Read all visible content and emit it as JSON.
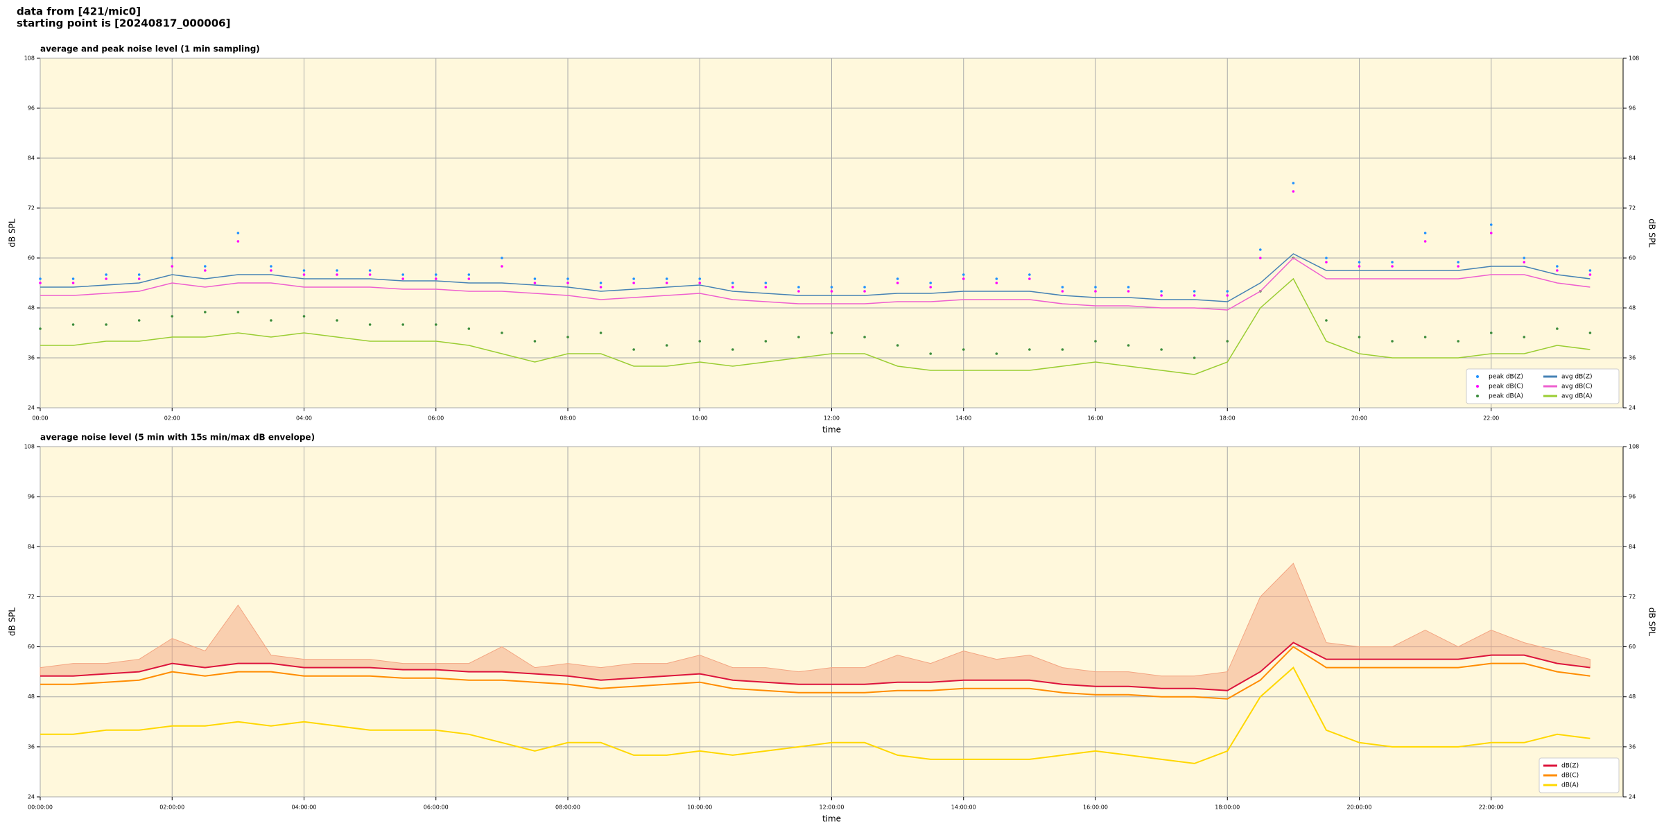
{
  "header": {
    "line1": "data from [421/mic0]",
    "line2": "starting point is [20240817_000006]"
  },
  "chart_data": [
    {
      "type": "line",
      "title": "average and peak noise level (1 min sampling)",
      "x_label": "time",
      "y_label": "dB SPL",
      "grid": true,
      "legend": "lower right",
      "legend_columns": 2,
      "x": [
        0,
        30,
        60,
        90,
        120,
        150,
        180,
        210,
        240,
        270,
        300,
        330,
        360,
        390,
        420,
        450,
        480,
        510,
        540,
        570,
        600,
        630,
        660,
        690,
        720,
        750,
        780,
        810,
        840,
        870,
        900,
        930,
        960,
        990,
        1020,
        1050,
        1080,
        1110,
        1140,
        1170,
        1200,
        1230,
        1260,
        1290,
        1320,
        1350,
        1380,
        1410
      ],
      "xlim": [
        0,
        1440
      ],
      "xticks": [
        {
          "value": 0,
          "label": "00:00"
        },
        {
          "value": 120,
          "label": "02:00"
        },
        {
          "value": 240,
          "label": "04:00"
        },
        {
          "value": 360,
          "label": "06:00"
        },
        {
          "value": 480,
          "label": "08:00"
        },
        {
          "value": 600,
          "label": "10:00"
        },
        {
          "value": 720,
          "label": "12:00"
        },
        {
          "value": 840,
          "label": "14:00"
        },
        {
          "value": 960,
          "label": "16:00"
        },
        {
          "value": 1080,
          "label": "18:00"
        },
        {
          "value": 1200,
          "label": "20:00"
        },
        {
          "value": 1320,
          "label": "22:00"
        }
      ],
      "ylim": [
        24,
        108
      ],
      "yticks": [
        24,
        36,
        48,
        60,
        72,
        84,
        96,
        108
      ],
      "series": [
        {
          "name": "peak dB(Z)",
          "kind": "scatter",
          "color": "#1e90ff",
          "values": [
            55,
            55,
            56,
            56,
            60,
            58,
            66,
            58,
            57,
            57,
            57,
            56,
            56,
            56,
            60,
            55,
            55,
            54,
            55,
            55,
            55,
            54,
            54,
            53,
            53,
            53,
            55,
            54,
            56,
            55,
            56,
            53,
            53,
            53,
            52,
            52,
            52,
            62,
            78,
            60,
            59,
            59,
            66,
            59,
            68,
            60,
            58,
            57
          ]
        },
        {
          "name": "peak dB(C)",
          "kind": "scatter",
          "color": "#ff00ff",
          "values": [
            54,
            54,
            55,
            55,
            58,
            57,
            64,
            57,
            56,
            56,
            56,
            55,
            55,
            55,
            58,
            54,
            54,
            53,
            54,
            54,
            54,
            53,
            53,
            52,
            52,
            52,
            54,
            53,
            55,
            54,
            55,
            52,
            52,
            52,
            51,
            51,
            51,
            60,
            76,
            59,
            58,
            58,
            64,
            58,
            66,
            59,
            57,
            56
          ]
        },
        {
          "name": "peak dB(A)",
          "kind": "scatter",
          "color": "#3c8c3c",
          "values": [
            43,
            44,
            44,
            45,
            46,
            47,
            47,
            45,
            46,
            45,
            44,
            44,
            44,
            43,
            42,
            40,
            41,
            42,
            38,
            39,
            40,
            38,
            40,
            41,
            42,
            41,
            39,
            37,
            38,
            37,
            38,
            38,
            40,
            39,
            38,
            36,
            40,
            52,
            60,
            45,
            41,
            40,
            41,
            40,
            42,
            41,
            43,
            42
          ]
        },
        {
          "name": "avg dB(Z)",
          "kind": "line",
          "color": "#4682b4",
          "values": [
            53,
            53,
            53.5,
            54,
            56,
            55,
            56,
            56,
            55,
            55,
            55,
            54.5,
            54.5,
            54,
            54,
            53.5,
            53,
            52,
            52.5,
            53,
            53.5,
            52,
            51.5,
            51,
            51,
            51,
            51.5,
            51.5,
            52,
            52,
            52,
            51,
            50.5,
            50.5,
            50,
            50,
            49.5,
            54,
            61,
            57,
            57,
            57,
            57,
            57,
            58,
            58,
            56,
            55
          ]
        },
        {
          "name": "avg dB(C)",
          "kind": "line",
          "color": "#ee5fcf",
          "values": [
            51,
            51,
            51.5,
            52,
            54,
            53,
            54,
            54,
            53,
            53,
            53,
            52.5,
            52.5,
            52,
            52,
            51.5,
            51,
            50,
            50.5,
            51,
            51.5,
            50,
            49.5,
            49,
            49,
            49,
            49.5,
            49.5,
            50,
            50,
            50,
            49,
            48.5,
            48.5,
            48,
            48,
            47.5,
            52,
            60,
            55,
            55,
            55,
            55,
            55,
            56,
            56,
            54,
            53
          ]
        },
        {
          "name": "avg dB(A)",
          "kind": "line",
          "color": "#9acd32",
          "values": [
            39,
            39,
            40,
            40,
            41,
            41,
            42,
            41,
            42,
            41,
            40,
            40,
            40,
            39,
            37,
            35,
            37,
            37,
            34,
            34,
            35,
            34,
            35,
            36,
            37,
            37,
            34,
            33,
            33,
            33,
            33,
            34,
            35,
            34,
            33,
            32,
            35,
            48,
            55,
            40,
            37,
            36,
            36,
            36,
            37,
            37,
            39,
            38
          ]
        }
      ]
    },
    {
      "type": "line",
      "title": "average noise level (5 min with 15s min/max dB envelope)",
      "x_label": "time",
      "y_label": "dB SPL",
      "grid": true,
      "legend": "lower right",
      "legend_columns": 1,
      "x": [
        0,
        30,
        60,
        90,
        120,
        150,
        180,
        210,
        240,
        270,
        300,
        330,
        360,
        390,
        420,
        450,
        480,
        510,
        540,
        570,
        600,
        630,
        660,
        690,
        720,
        750,
        780,
        810,
        840,
        870,
        900,
        930,
        960,
        990,
        1020,
        1050,
        1080,
        1110,
        1140,
        1170,
        1200,
        1230,
        1260,
        1290,
        1320,
        1350,
        1380,
        1410
      ],
      "xlim": [
        0,
        1440
      ],
      "xticks": [
        {
          "value": 0,
          "label": "00:00:00"
        },
        {
          "value": 120,
          "label": "02:00:00"
        },
        {
          "value": 240,
          "label": "04:00:00"
        },
        {
          "value": 360,
          "label": "06:00:00"
        },
        {
          "value": 480,
          "label": "08:00:00"
        },
        {
          "value": 600,
          "label": "10:00:00"
        },
        {
          "value": 720,
          "label": "12:00:00"
        },
        {
          "value": 840,
          "label": "14:00:00"
        },
        {
          "value": 960,
          "label": "16:00:00"
        },
        {
          "value": 1080,
          "label": "18:00:00"
        },
        {
          "value": 1200,
          "label": "20:00:00"
        },
        {
          "value": 1320,
          "label": "22:00:00"
        }
      ],
      "ylim": [
        24,
        108
      ],
      "yticks": [
        24,
        36,
        48,
        60,
        72,
        84,
        96,
        108
      ],
      "envelope": {
        "color": "#f4a582",
        "values": [
          55,
          56,
          56,
          57,
          62,
          59,
          70,
          58,
          57,
          57,
          57,
          56,
          56,
          56,
          60,
          55,
          56,
          55,
          56,
          56,
          58,
          55,
          55,
          54,
          55,
          55,
          58,
          56,
          59,
          57,
          58,
          55,
          54,
          54,
          53,
          53,
          54,
          72,
          80,
          61,
          60,
          60,
          64,
          60,
          64,
          61,
          59,
          57
        ]
      },
      "series": [
        {
          "name": "dB(Z)",
          "kind": "line",
          "color": "#dc143c",
          "values": [
            53,
            53,
            53.5,
            54,
            56,
            55,
            56,
            56,
            55,
            55,
            55,
            54.5,
            54.5,
            54,
            54,
            53.5,
            53,
            52,
            52.5,
            53,
            53.5,
            52,
            51.5,
            51,
            51,
            51,
            51.5,
            51.5,
            52,
            52,
            52,
            51,
            50.5,
            50.5,
            50,
            50,
            49.5,
            54,
            61,
            57,
            57,
            57,
            57,
            57,
            58,
            58,
            56,
            55
          ]
        },
        {
          "name": "dB(C)",
          "kind": "line",
          "color": "#ff8c00",
          "values": [
            51,
            51,
            51.5,
            52,
            54,
            53,
            54,
            54,
            53,
            53,
            53,
            52.5,
            52.5,
            52,
            52,
            51.5,
            51,
            50,
            50.5,
            51,
            51.5,
            50,
            49.5,
            49,
            49,
            49,
            49.5,
            49.5,
            50,
            50,
            50,
            49,
            48.5,
            48.5,
            48,
            48,
            47.5,
            52,
            60,
            55,
            55,
            55,
            55,
            55,
            56,
            56,
            54,
            53
          ]
        },
        {
          "name": "dB(A)",
          "kind": "line",
          "color": "#ffd700",
          "values": [
            39,
            39,
            40,
            40,
            41,
            41,
            42,
            41,
            42,
            41,
            40,
            40,
            40,
            39,
            37,
            35,
            37,
            37,
            34,
            34,
            35,
            34,
            35,
            36,
            37,
            37,
            34,
            33,
            33,
            33,
            33,
            34,
            35,
            34,
            33,
            32,
            35,
            48,
            55,
            40,
            37,
            36,
            36,
            36,
            37,
            37,
            39,
            38
          ]
        }
      ]
    }
  ]
}
